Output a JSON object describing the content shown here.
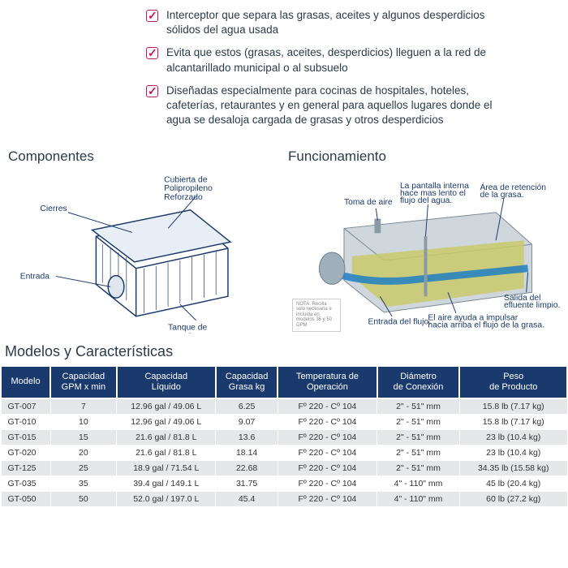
{
  "features": [
    "Interceptor que separa las grasas, aceites y algunos desperdicios sólidos del agua usada",
    "Evita que  estos (grasas, aceites, desperdicios) lleguen a la red de alcantarillado municipal o al subsuelo",
    "Diseñadas especialmente para cocinas de hospitales, hoteles, cafeterías, retaurantes y en general para aquellos lugares donde el agua se desaloja cargada de grasas y otros desperdicios"
  ],
  "diagrams": {
    "left_title": "Componentes",
    "right_title": "Funcionamiento",
    "labels": {
      "cierres": "Cierres",
      "cubierta": "Cubierta de Polipropileno Reforzado",
      "entrada": "Entrada",
      "tanque": "Tanque de una pieza",
      "toma_aire": "Toma de aire",
      "pantalla": "La pantalla interna hace mas lento el flujo del agua.",
      "area_ret": "Área de retención de la grasa.",
      "entrada_flujo": "Entrada del flujo.",
      "aire_impulsa": "El aire ayuda a impulsar hacia arriba el flujo de la grasa.",
      "salida": "Salida del efluente limpio."
    },
    "note": "NOTA: Recilla solo necesaria e incluida en modelos 35 y 50 GPM"
  },
  "models_title": "Modelos y Características",
  "table": {
    "columns": [
      "Modelo",
      "Capacidad GPM x min",
      "Capacidad Líquido",
      "Capacidad Grasa kg",
      "Temperatura de Operación",
      "Diámetro de Conexión",
      "Peso de Producto"
    ],
    "col_widths": [
      "60px",
      "80px",
      "120px",
      "75px",
      "120px",
      "100px",
      "130px"
    ],
    "rows": [
      [
        "GT-007",
        "7",
        "12.96 gal / 49.06 L",
        "6.25",
        "Fº 220 - Cº 104",
        "2\" - 51\" mm",
        "15.8 lb (7.17 kg)"
      ],
      [
        "GT-010",
        "10",
        "12.96 gal / 49.06 L",
        "9.07",
        "Fº 220 - Cº 104",
        "2\" - 51\" mm",
        "15.8 lb (7.17 kg)"
      ],
      [
        "GT-015",
        "15",
        "21.6 gal / 81.8 L",
        "13.6",
        "Fº 220 - Cº 104",
        "2\" - 51\" mm",
        "23 lb (10.4 kg)"
      ],
      [
        "GT-020",
        "20",
        "21.6 gal / 81.8 L",
        "18.14",
        "Fº 220 - Cº 104",
        "2\" - 51\" mm",
        "23 lb (10.4 kg)"
      ],
      [
        "GT-125",
        "25",
        "18.9 gal / 71.54 L",
        "22.68",
        "Fº 220 - Cº 104",
        "2\" - 51\" mm",
        "34.35 lb (15.58 kg)"
      ],
      [
        "GT-035",
        "35",
        "39.4 gal / 149.1 L",
        "31.75",
        "Fº 220 - Cº 104",
        "4\" - 110\" mm",
        "45 lb (20.4 kg)"
      ],
      [
        "GT-050",
        "50",
        "52.0 gal / 197.0 L",
        "45.4",
        "Fº 220 - Cº 104",
        "4\" - 110\" mm",
        "60 lb (27.2 kg)"
      ]
    ]
  },
  "colors": {
    "accent": "#c2185b",
    "header_bg": "#1a3a6e",
    "text": "#2a3b4a",
    "row_alt": "#e6e7e8"
  }
}
